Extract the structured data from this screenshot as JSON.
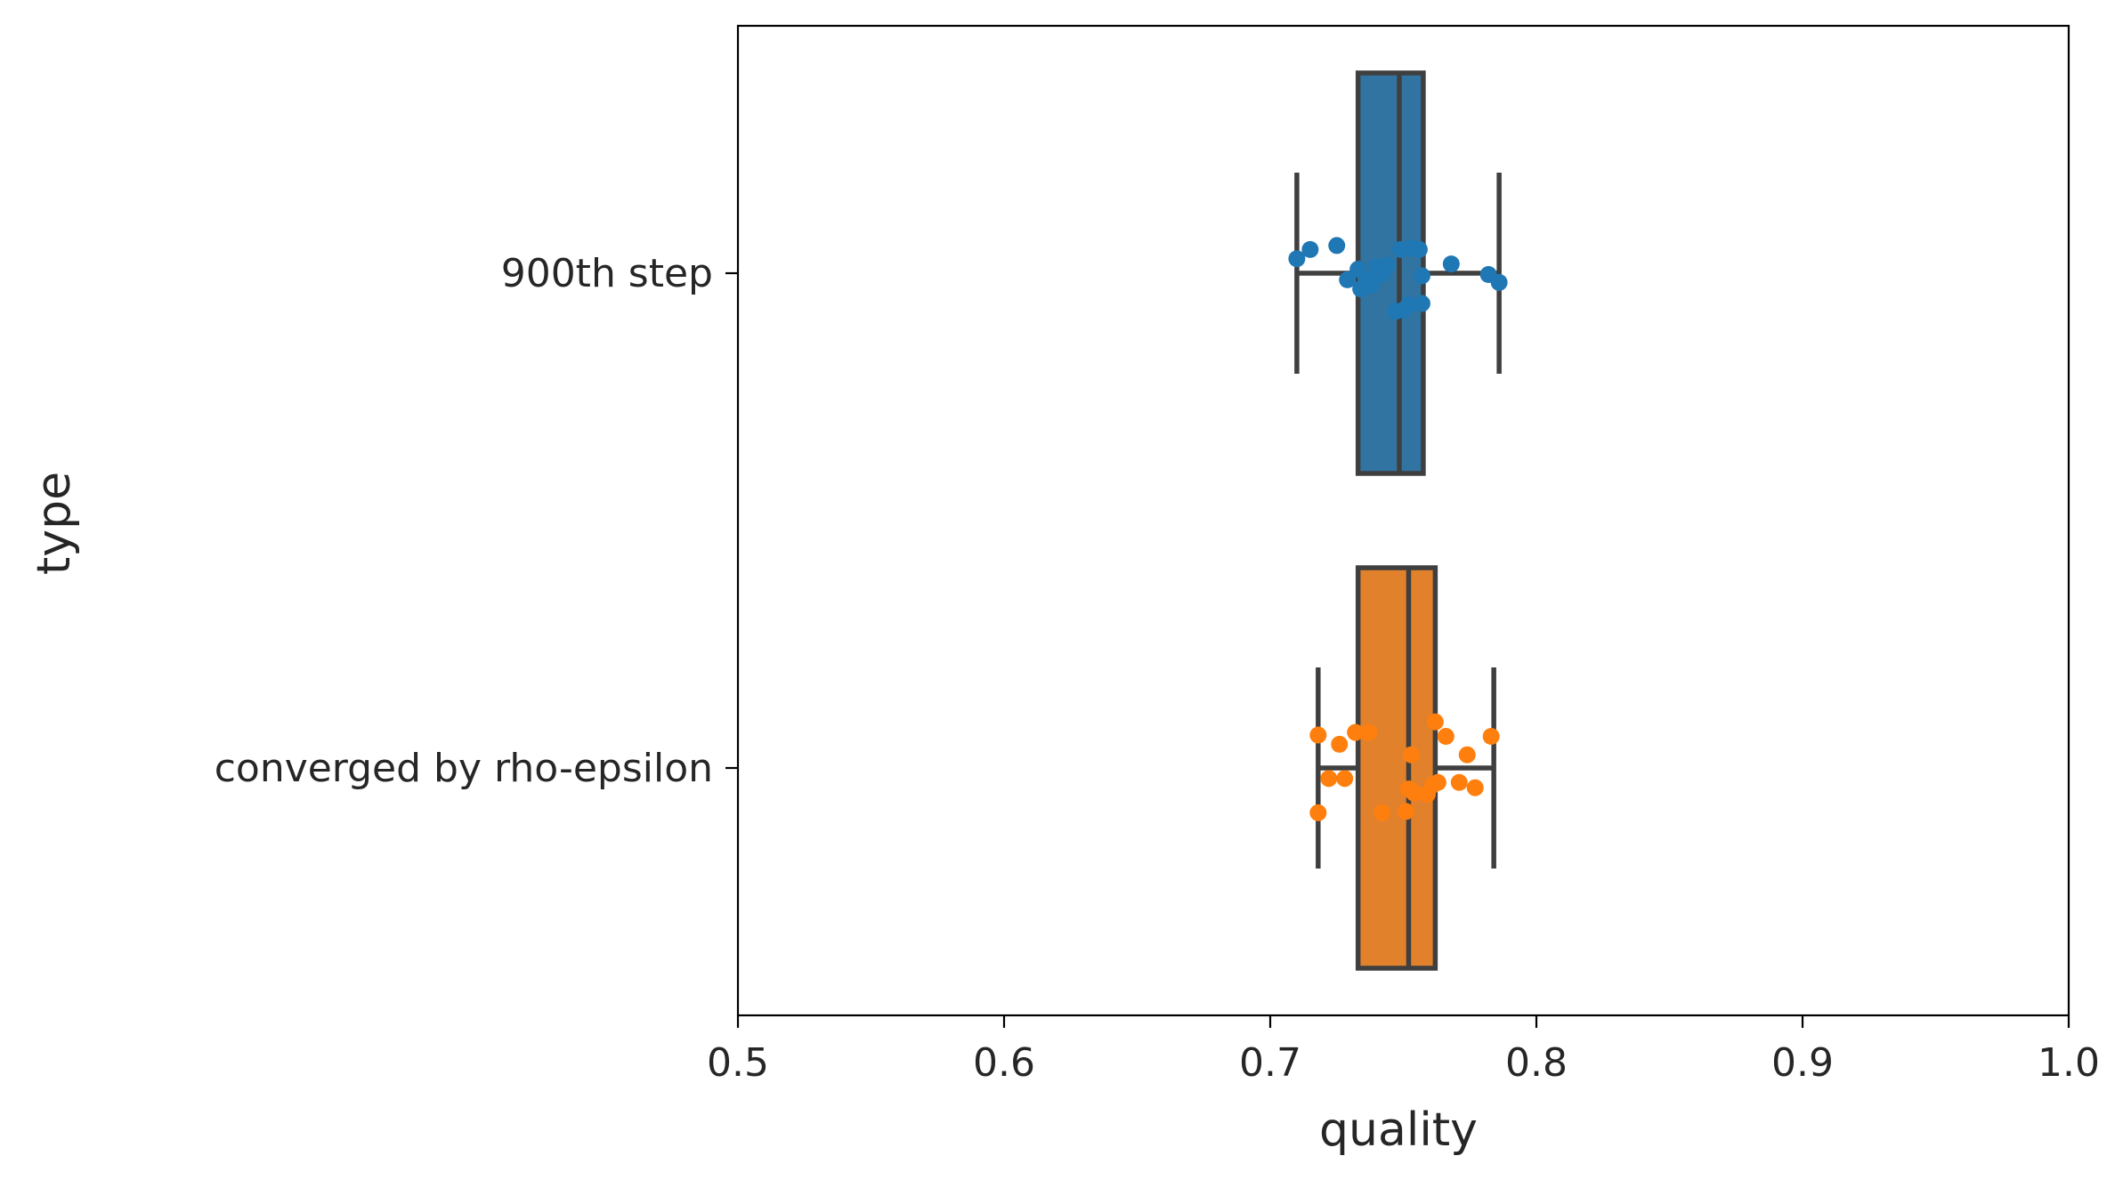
{
  "chart_data": {
    "type": "box",
    "orientation": "horizontal",
    "xlabel": "quality",
    "ylabel": "type",
    "xlim": [
      0.5,
      1.0
    ],
    "xticks": [
      0.5,
      0.6,
      0.7,
      0.8,
      0.9,
      1.0
    ],
    "xtick_labels": [
      "0.5",
      "0.6",
      "0.7",
      "0.8",
      "0.9",
      "1.0"
    ],
    "categories": [
      "900th step",
      "converged by rho-epsilon"
    ],
    "grid": false,
    "legend": "none",
    "series": [
      {
        "box_color": "#3274a1",
        "point_color": "#1f77b4",
        "stats": {
          "whisker_low": 0.71,
          "q1": 0.733,
          "median": 0.7485,
          "q3": 0.7575,
          "whisker_high": 0.786
        },
        "points": [
          [
            0.71,
            0.22
          ],
          [
            0.715,
            0.36
          ],
          [
            0.725,
            0.42
          ],
          [
            0.729,
            -0.1
          ],
          [
            0.733,
            0.06
          ],
          [
            0.734,
            -0.24
          ],
          [
            0.736,
            -0.1
          ],
          [
            0.738,
            -0.18
          ],
          [
            0.74,
            0.1
          ],
          [
            0.742,
            -0.02
          ],
          [
            0.744,
            0.12
          ],
          [
            0.747,
            -0.58
          ],
          [
            0.749,
            0.36
          ],
          [
            0.75,
            -0.56
          ],
          [
            0.752,
            -0.48
          ],
          [
            0.753,
            0.38
          ],
          [
            0.756,
            0.36
          ],
          [
            0.757,
            -0.46
          ],
          [
            0.757,
            -0.04
          ],
          [
            0.768,
            0.14
          ],
          [
            0.782,
            -0.02
          ],
          [
            0.786,
            -0.14
          ]
        ]
      },
      {
        "box_color": "#e1812c",
        "point_color": "#ff7f0e",
        "stats": {
          "whisker_low": 0.718,
          "q1": 0.733,
          "median": 0.752,
          "q3": 0.762,
          "whisker_high": 0.784
        },
        "points": [
          [
            0.718,
            0.5
          ],
          [
            0.718,
            -0.68
          ],
          [
            0.722,
            -0.16
          ],
          [
            0.726,
            0.36
          ],
          [
            0.728,
            -0.16
          ],
          [
            0.732,
            0.54
          ],
          [
            0.737,
            0.54
          ],
          [
            0.742,
            -0.68
          ],
          [
            0.751,
            -0.66
          ],
          [
            0.752,
            -0.32
          ],
          [
            0.753,
            0.2
          ],
          [
            0.754,
            -0.38
          ],
          [
            0.759,
            -0.4
          ],
          [
            0.761,
            -0.26
          ],
          [
            0.762,
            0.7
          ],
          [
            0.763,
            -0.22
          ],
          [
            0.766,
            0.48
          ],
          [
            0.771,
            -0.22
          ],
          [
            0.774,
            0.2
          ],
          [
            0.777,
            -0.3
          ],
          [
            0.783,
            0.48
          ]
        ]
      }
    ]
  }
}
